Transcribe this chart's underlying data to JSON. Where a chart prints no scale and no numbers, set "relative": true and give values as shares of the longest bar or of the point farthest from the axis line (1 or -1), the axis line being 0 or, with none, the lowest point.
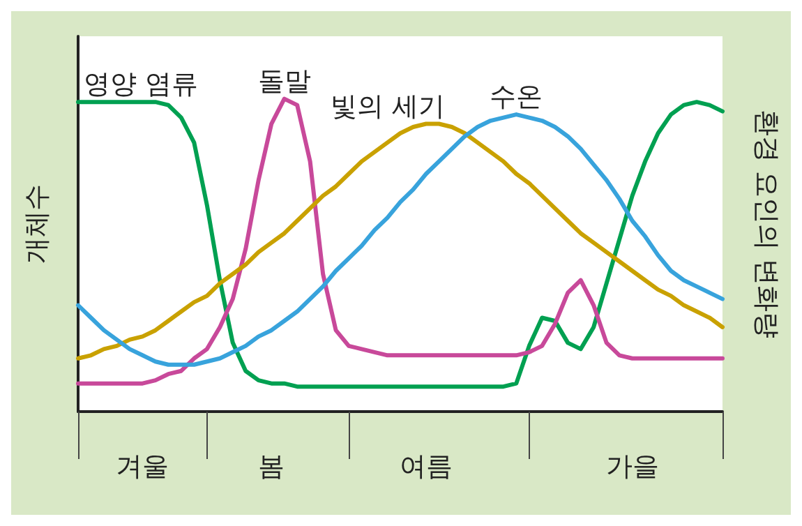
{
  "chart_data": {
    "type": "line",
    "relative": true,
    "ylabel": "개체수",
    "y2label": "환경 요인의 변화량",
    "legend": false,
    "grid": false,
    "marker": "none",
    "line_style": "solid",
    "categories": [
      null,
      null,
      null,
      null,
      null,
      "겨울",
      null,
      null,
      null,
      null,
      null,
      null,
      null,
      null,
      null,
      "봄",
      null,
      null,
      null,
      null,
      null,
      null,
      null,
      null,
      null,
      null,
      null,
      "여름",
      null,
      null,
      null,
      null,
      null,
      null,
      null,
      null,
      null,
      null,
      null,
      null,
      null,
      null,
      null,
      "가을",
      null,
      null,
      null,
      null,
      null,
      null,
      null
    ],
    "series": [
      {
        "name": "영양 염류",
        "color": "#00a051",
        "values": [
          0.99,
          0.99,
          0.99,
          0.99,
          0.99,
          0.99,
          0.99,
          0.98,
          0.94,
          0.86,
          0.66,
          0.42,
          0.22,
          0.13,
          0.1,
          0.09,
          0.09,
          0.08,
          0.08,
          0.08,
          0.08,
          0.08,
          0.08,
          0.08,
          0.08,
          0.08,
          0.08,
          0.08,
          0.08,
          0.08,
          0.08,
          0.08,
          0.08,
          0.08,
          0.09,
          0.21,
          0.3,
          0.29,
          0.22,
          0.2,
          0.27,
          0.41,
          0.55,
          0.69,
          0.8,
          0.89,
          0.95,
          0.98,
          0.99,
          0.98,
          0.96
        ]
      },
      {
        "name": "돌말",
        "color": "#c8499a",
        "values": [
          0.09,
          0.09,
          0.09,
          0.09,
          0.09,
          0.09,
          0.1,
          0.12,
          0.13,
          0.17,
          0.2,
          0.27,
          0.36,
          0.52,
          0.74,
          0.92,
          1,
          0.98,
          0.8,
          0.44,
          0.26,
          0.21,
          0.2,
          0.19,
          0.18,
          0.18,
          0.18,
          0.18,
          0.18,
          0.18,
          0.18,
          0.18,
          0.18,
          0.18,
          0.18,
          0.19,
          0.21,
          0.28,
          0.38,
          0.42,
          0.34,
          0.22,
          0.18,
          0.17,
          0.17,
          0.17,
          0.17,
          0.17,
          0.17,
          0.17,
          0.17
        ]
      },
      {
        "name": "빛의 세기",
        "color": "#c9a100",
        "values": [
          0.17,
          0.18,
          0.2,
          0.21,
          0.23,
          0.24,
          0.26,
          0.29,
          0.32,
          0.35,
          0.37,
          0.41,
          0.44,
          0.47,
          0.51,
          0.54,
          0.57,
          0.61,
          0.65,
          0.69,
          0.72,
          0.76,
          0.8,
          0.83,
          0.86,
          0.89,
          0.91,
          0.92,
          0.92,
          0.91,
          0.89,
          0.86,
          0.83,
          0.8,
          0.76,
          0.73,
          0.69,
          0.65,
          0.61,
          0.57,
          0.54,
          0.51,
          0.48,
          0.45,
          0.42,
          0.39,
          0.37,
          0.34,
          0.32,
          0.3,
          0.27
        ]
      },
      {
        "name": "수온",
        "color": "#38a3dc",
        "values": [
          0.34,
          0.3,
          0.26,
          0.23,
          0.2,
          0.18,
          0.16,
          0.15,
          0.15,
          0.15,
          0.16,
          0.17,
          0.19,
          0.21,
          0.24,
          0.26,
          0.29,
          0.32,
          0.36,
          0.4,
          0.45,
          0.49,
          0.53,
          0.58,
          0.62,
          0.67,
          0.71,
          0.76,
          0.8,
          0.84,
          0.88,
          0.91,
          0.93,
          0.94,
          0.95,
          0.94,
          0.93,
          0.91,
          0.88,
          0.84,
          0.79,
          0.74,
          0.68,
          0.61,
          0.56,
          0.5,
          0.45,
          0.42,
          0.4,
          0.38,
          0.36
        ]
      }
    ]
  }
}
